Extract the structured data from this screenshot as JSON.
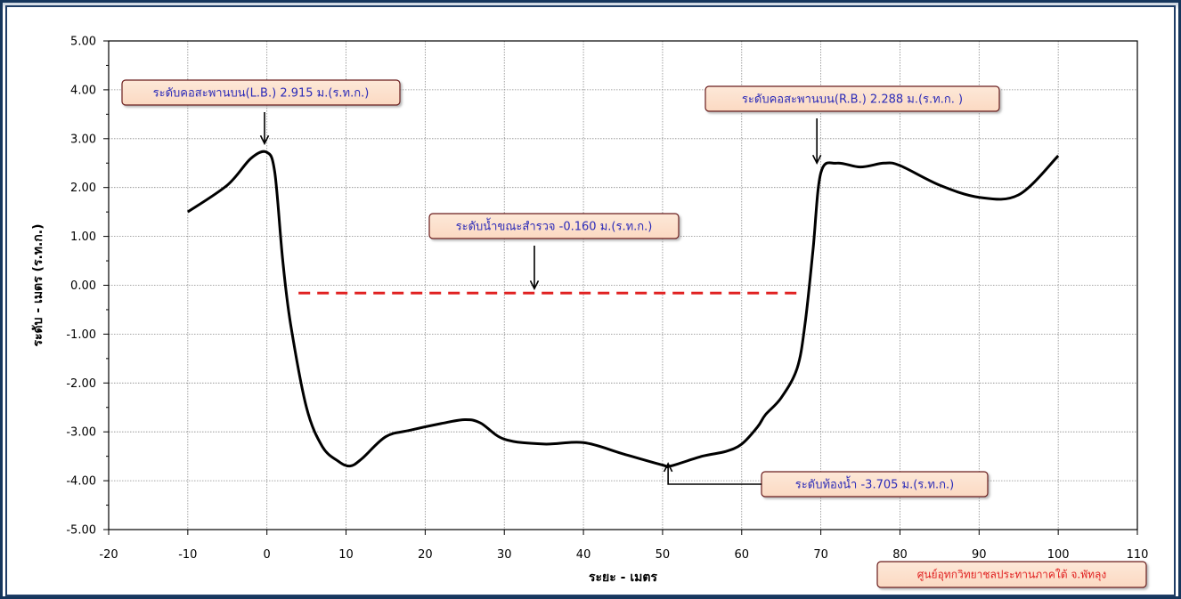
{
  "chart_data": {
    "type": "line",
    "xlabel": "ระยะ - เมตร",
    "ylabel": "ระดับ - เมตร (ร.ท.ก.)",
    "xlim": [
      -20,
      110
    ],
    "ylim": [
      -5,
      5
    ],
    "x_ticks": [
      "-20",
      "-10",
      "0",
      "10",
      "20",
      "30",
      "40",
      "50",
      "60",
      "70",
      "80",
      "90",
      "100",
      "110"
    ],
    "y_ticks": [
      "5.00",
      "4.00",
      "3.00",
      "2.00",
      "1.00",
      "0.00",
      "-1.00",
      "-2.00",
      "-3.00",
      "-4.00",
      "-5.00"
    ],
    "grid": true,
    "series": [
      {
        "color": "#000000",
        "x": [
          -10,
          -5,
          -2,
          0,
          1,
          2,
          3,
          5,
          7,
          9,
          10.5,
          12,
          15,
          18,
          22,
          25,
          27,
          30,
          35,
          40,
          45,
          50,
          51,
          55,
          58,
          60,
          62,
          63,
          65,
          67,
          68,
          69,
          70,
          72,
          75,
          78,
          80,
          85,
          90,
          95,
          100
        ],
        "y": [
          1.5,
          2.05,
          2.6,
          2.72,
          2.3,
          0.5,
          -0.8,
          -2.5,
          -3.3,
          -3.6,
          -3.7,
          -3.55,
          -3.1,
          -2.97,
          -2.83,
          -2.75,
          -2.82,
          -3.15,
          -3.25,
          -3.22,
          -3.45,
          -3.68,
          -3.7,
          -3.5,
          -3.4,
          -3.25,
          -2.9,
          -2.65,
          -2.3,
          -1.7,
          -0.8,
          0.7,
          2.3,
          2.5,
          2.42,
          2.5,
          2.45,
          2.05,
          1.8,
          1.85,
          2.65
        ]
      },
      {
        "style": "dashed",
        "color": "#e02020",
        "x": [
          4,
          67
        ],
        "y": [
          -0.16,
          -0.16
        ]
      }
    ],
    "annotations": [
      {
        "text": "ระดับคอสะพานบน(L.B.) 2.915 ม.(ร.ท.ก.)",
        "target": [
          -0.3,
          2.9
        ]
      },
      {
        "text": "ระดับคอสะพานบน(R.B.) 2.288 ม.(ร.ท.ก. )",
        "target": [
          69.5,
          2.5
        ]
      },
      {
        "text": "ระดับน้ำขณะสำรวจ -0.160 ม.(ร.ท.ก.)",
        "target": [
          33.8,
          -0.07
        ]
      },
      {
        "text": "ระดับท้องน้ำ -3.705 ม.(ร.ท.ก.)",
        "target": [
          50.7,
          -3.65
        ]
      }
    ]
  },
  "credit": "ศูนย์อุทกวิทยาชลประทานภาคใต้ จ.พัทลุง"
}
